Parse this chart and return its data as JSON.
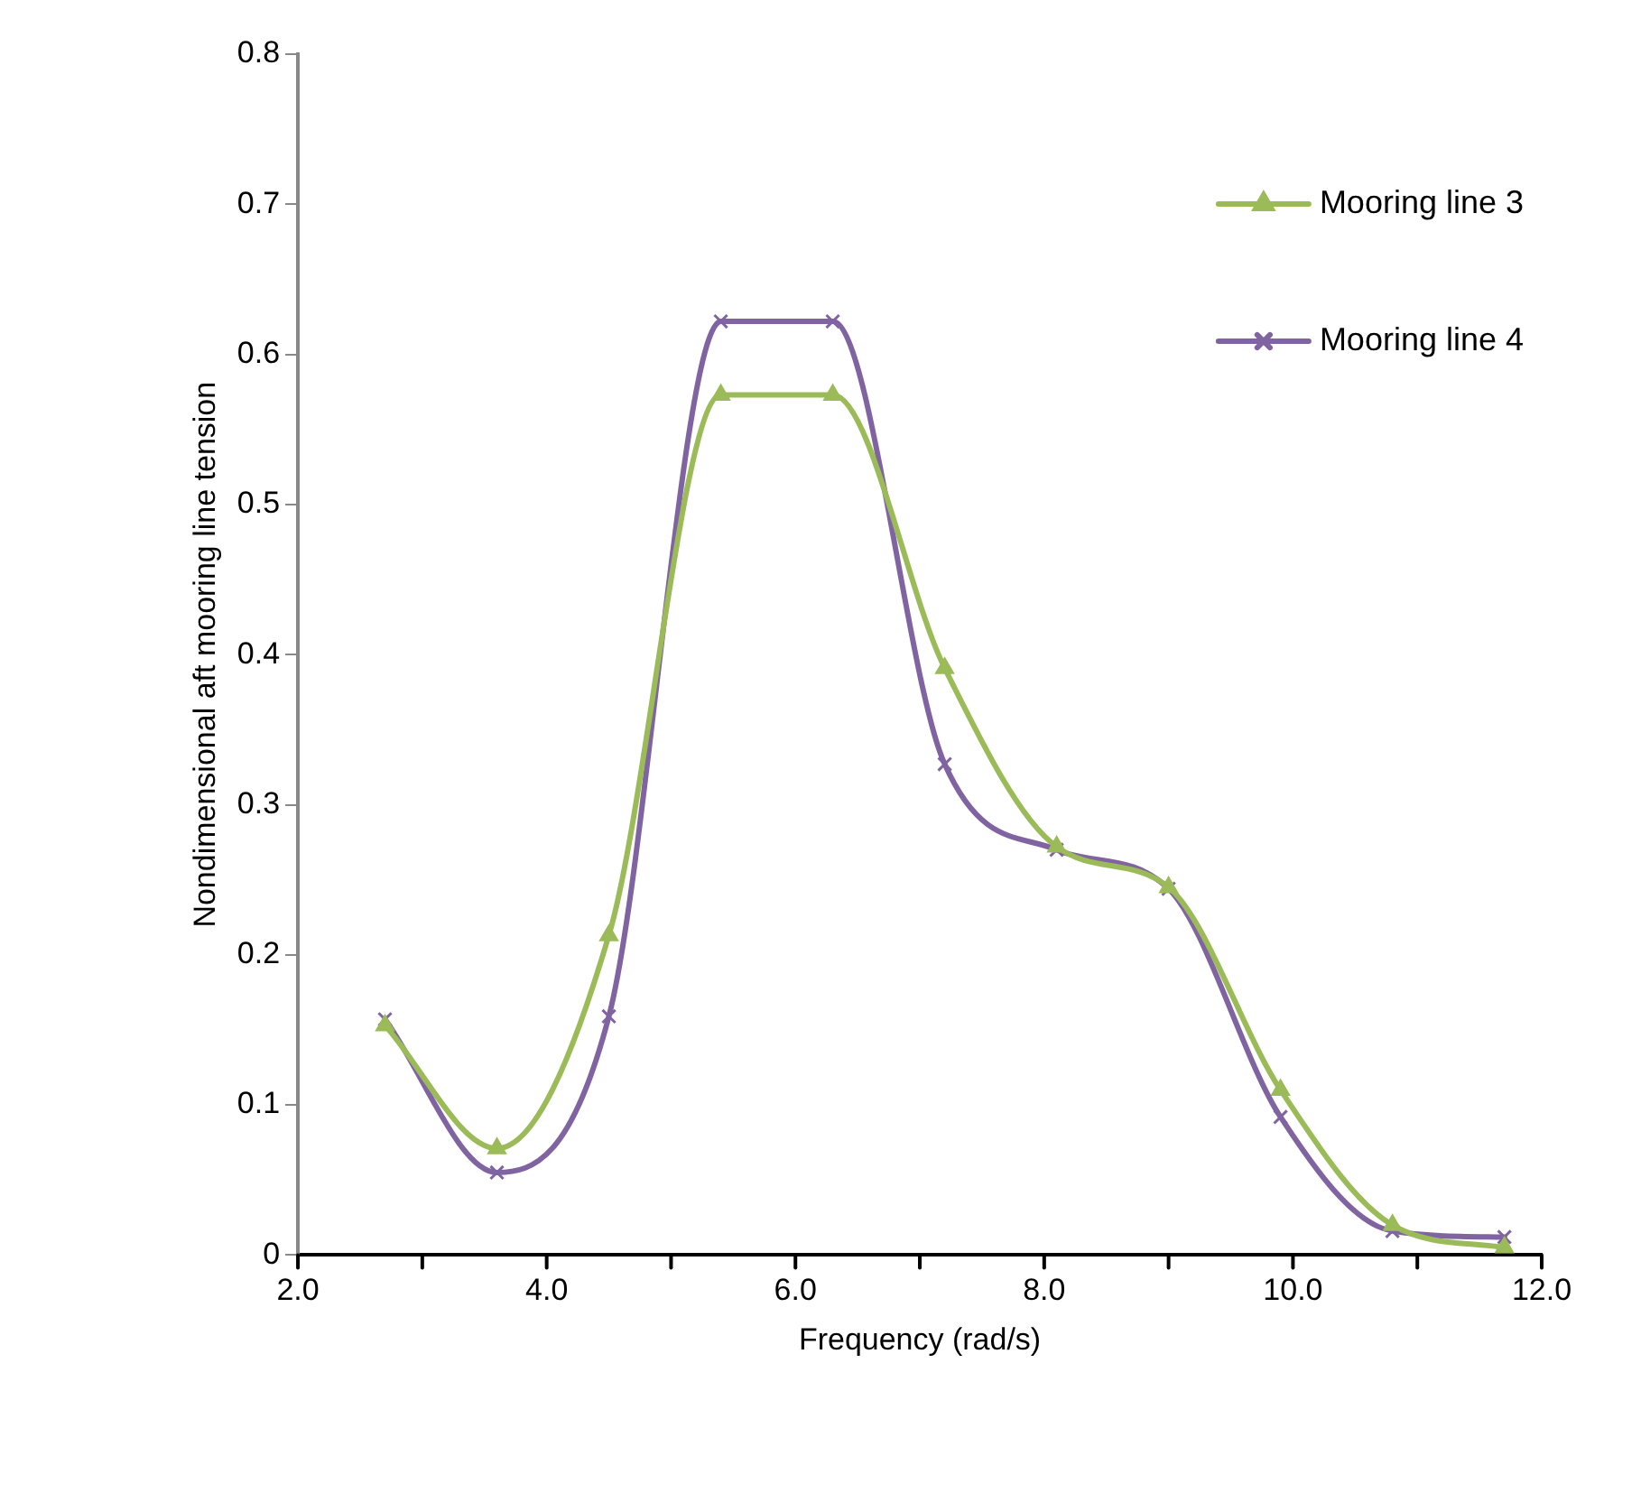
{
  "chart_data": {
    "type": "line",
    "xlabel": "Frequency (rad/s)",
    "ylabel": "Nondimensional aft mooring line tension",
    "x": [
      2.7,
      3.6,
      4.5,
      5.4,
      6.3,
      7.2,
      8.1,
      9.0,
      9.9,
      10.8,
      11.7
    ],
    "series": [
      {
        "name": "Mooring line 3",
        "color": "#9bbb59",
        "marker": "triangle",
        "values": [
          0.153,
          0.071,
          0.213,
          0.573,
          0.573,
          0.391,
          0.272,
          0.245,
          0.11,
          0.02,
          0.005
        ]
      },
      {
        "name": "Mooring line 4",
        "color": "#8064a2",
        "marker": "cross",
        "values": [
          0.157,
          0.055,
          0.159,
          0.622,
          0.622,
          0.327,
          0.27,
          0.244,
          0.092,
          0.016,
          0.012
        ]
      }
    ],
    "xlim": [
      2,
      12
    ],
    "xticks": [
      {
        "value": 2,
        "label": "2.0"
      },
      {
        "value": 3,
        "label": null
      },
      {
        "value": 4,
        "label": "4.0"
      },
      {
        "value": 5,
        "label": null
      },
      {
        "value": 6,
        "label": "6.0"
      },
      {
        "value": 7,
        "label": null
      },
      {
        "value": 8,
        "label": "8.0"
      },
      {
        "value": 9,
        "label": null
      },
      {
        "value": 10,
        "label": "10.0"
      },
      {
        "value": 11,
        "label": null
      },
      {
        "value": 12,
        "label": "12.0"
      }
    ],
    "ylim": [
      0,
      0.8
    ],
    "yticks": [
      0,
      0.1,
      0.2,
      0.3,
      0.4,
      0.5,
      0.6,
      0.7,
      0.8
    ],
    "grid": false,
    "legend": "top right",
    "line_style": "solid"
  }
}
